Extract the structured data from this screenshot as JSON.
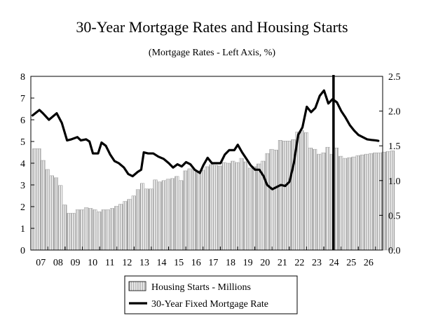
{
  "chart_data": {
    "type": "bar",
    "title": "30-Year Mortgage Rates and Housing Starts",
    "subtitle": "(Mortgage Rates - Left Axis, %)",
    "left_axis": {
      "ylim": [
        0,
        8
      ],
      "ticks": [
        "0",
        "1",
        "2",
        "3",
        "4",
        "5",
        "6",
        "7",
        "8"
      ]
    },
    "right_axis": {
      "ylim": [
        0.0,
        2.5
      ],
      "ticks": [
        "0.0",
        "0.5",
        "1.0",
        "1.5",
        "2.0",
        "2.5"
      ]
    },
    "x_range": [
      2006.5,
      2026.9
    ],
    "x_ticks": [
      {
        "label": "07",
        "x": 2007.0
      },
      {
        "label": "08",
        "x": 2008.0
      },
      {
        "label": "09",
        "x": 2009.0
      },
      {
        "label": "10",
        "x": 2010.0
      },
      {
        "label": "11",
        "x": 2011.0
      },
      {
        "label": "12",
        "x": 2012.0
      },
      {
        "label": "13",
        "x": 2013.0
      },
      {
        "label": "14",
        "x": 2014.0
      },
      {
        "label": "15",
        "x": 2015.0
      },
      {
        "label": "16",
        "x": 2016.0
      },
      {
        "label": "17",
        "x": 2017.0
      },
      {
        "label": "18",
        "x": 2018.0
      },
      {
        "label": "19",
        "x": 2019.0
      },
      {
        "label": "20",
        "x": 2020.0
      },
      {
        "label": "21",
        "x": 2021.0
      },
      {
        "label": "22",
        "x": 2022.0
      },
      {
        "label": "23",
        "x": 2023.0
      },
      {
        "label": "24",
        "x": 2024.0
      },
      {
        "label": "25",
        "x": 2025.0
      },
      {
        "label": "26",
        "x": 2026.0
      }
    ],
    "forecast_divider_x": 2024.05,
    "series": [
      {
        "name": "Housing Starts - Millions",
        "axis": "right",
        "style": "hatched-bar",
        "x_start": 2006.6,
        "x_step": 0.25,
        "values": [
          1.46,
          1.46,
          1.29,
          1.16,
          1.07,
          1.04,
          0.93,
          0.65,
          0.53,
          0.53,
          0.58,
          0.58,
          0.61,
          0.6,
          0.58,
          0.55,
          0.58,
          0.58,
          0.6,
          0.63,
          0.66,
          0.7,
          0.73,
          0.78,
          0.87,
          0.96,
          0.88,
          0.88,
          1.01,
          0.98,
          1.0,
          1.02,
          1.03,
          1.06,
          1.0,
          1.14,
          1.17,
          1.16,
          1.14,
          1.15,
          1.2,
          1.23,
          1.22,
          1.21,
          1.26,
          1.25,
          1.28,
          1.26,
          1.32,
          1.27,
          1.18,
          1.2,
          1.24,
          1.28,
          1.39,
          1.45,
          1.44,
          1.58,
          1.57,
          1.57,
          1.59,
          1.7,
          1.72,
          1.69,
          1.47,
          1.45,
          1.38,
          1.4,
          1.48,
          1.38,
          1.47,
          1.35,
          1.32,
          1.33,
          1.34,
          1.36,
          1.37,
          1.38,
          1.39,
          1.4,
          1.4,
          1.41,
          1.42,
          1.43
        ]
      },
      {
        "name": "30-Year Fixed Mortgage Rate",
        "axis": "left",
        "style": "line",
        "points": [
          [
            2006.6,
            6.2
          ],
          [
            2007.0,
            6.45
          ],
          [
            2007.2,
            6.3
          ],
          [
            2007.55,
            6.0
          ],
          [
            2008.0,
            6.3
          ],
          [
            2008.3,
            5.85
          ],
          [
            2008.6,
            5.05
          ],
          [
            2008.85,
            5.1
          ],
          [
            2009.2,
            5.2
          ],
          [
            2009.4,
            5.05
          ],
          [
            2009.7,
            5.1
          ],
          [
            2009.9,
            5.0
          ],
          [
            2010.1,
            4.45
          ],
          [
            2010.4,
            4.45
          ],
          [
            2010.6,
            4.95
          ],
          [
            2010.85,
            4.8
          ],
          [
            2011.1,
            4.4
          ],
          [
            2011.35,
            4.1
          ],
          [
            2011.6,
            4.0
          ],
          [
            2011.9,
            3.8
          ],
          [
            2012.15,
            3.5
          ],
          [
            2012.4,
            3.4
          ],
          [
            2012.7,
            3.6
          ],
          [
            2012.9,
            3.7
          ],
          [
            2013.05,
            4.5
          ],
          [
            2013.3,
            4.45
          ],
          [
            2013.6,
            4.45
          ],
          [
            2013.9,
            4.3
          ],
          [
            2014.2,
            4.2
          ],
          [
            2014.5,
            4.0
          ],
          [
            2014.75,
            3.8
          ],
          [
            2015.0,
            3.95
          ],
          [
            2015.25,
            3.85
          ],
          [
            2015.5,
            4.05
          ],
          [
            2015.75,
            3.95
          ],
          [
            2016.0,
            3.7
          ],
          [
            2016.3,
            3.55
          ],
          [
            2016.5,
            3.9
          ],
          [
            2016.75,
            4.25
          ],
          [
            2017.0,
            4.0
          ],
          [
            2017.25,
            4.0
          ],
          [
            2017.5,
            4.0
          ],
          [
            2017.75,
            4.4
          ],
          [
            2018.0,
            4.6
          ],
          [
            2018.3,
            4.6
          ],
          [
            2018.5,
            4.85
          ],
          [
            2018.75,
            4.5
          ],
          [
            2019.0,
            4.2
          ],
          [
            2019.25,
            3.9
          ],
          [
            2019.5,
            3.7
          ],
          [
            2019.75,
            3.7
          ],
          [
            2020.0,
            3.4
          ],
          [
            2020.2,
            3.0
          ],
          [
            2020.5,
            2.8
          ],
          [
            2020.75,
            2.9
          ],
          [
            2021.0,
            3.0
          ],
          [
            2021.25,
            2.95
          ],
          [
            2021.5,
            3.15
          ],
          [
            2021.75,
            4.0
          ],
          [
            2022.0,
            5.3
          ],
          [
            2022.25,
            5.65
          ],
          [
            2022.5,
            6.6
          ],
          [
            2022.75,
            6.35
          ],
          [
            2023.0,
            6.55
          ],
          [
            2023.25,
            7.1
          ],
          [
            2023.5,
            7.35
          ],
          [
            2023.75,
            6.75
          ],
          [
            2024.0,
            6.95
          ],
          [
            2024.25,
            6.8
          ],
          [
            2024.5,
            6.4
          ],
          [
            2024.75,
            6.1
          ],
          [
            2025.0,
            5.75
          ],
          [
            2025.25,
            5.5
          ],
          [
            2025.5,
            5.3
          ],
          [
            2025.75,
            5.2
          ],
          [
            2026.0,
            5.1
          ],
          [
            2026.25,
            5.07
          ],
          [
            2026.5,
            5.05
          ],
          [
            2026.65,
            5.03
          ]
        ]
      }
    ],
    "legend": {
      "placement": "bottom-center",
      "entries": [
        "Housing Starts - Millions",
        "30-Year Fixed Mortgage Rate"
      ]
    }
  }
}
